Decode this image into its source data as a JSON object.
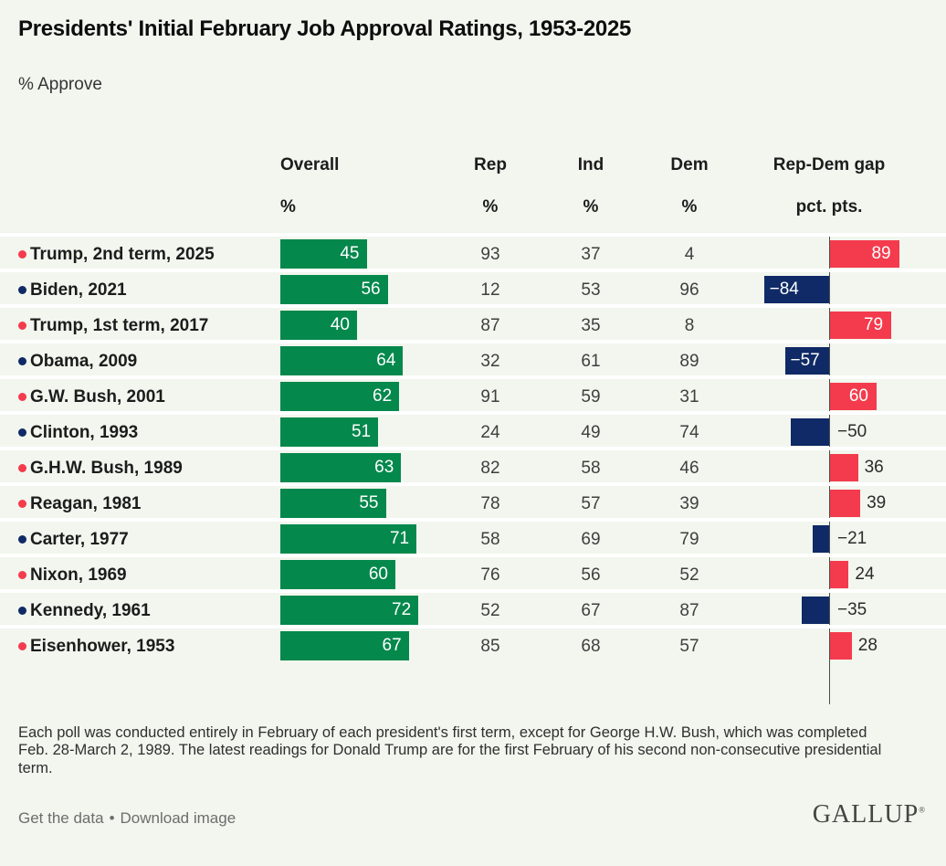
{
  "title": "Presidents' Initial February Job Approval Ratings, 1953-2025",
  "subtitle": "% Approve",
  "columns": [
    {
      "label": "Overall",
      "unit": "%"
    },
    {
      "label": "Rep",
      "unit": "%"
    },
    {
      "label": "Ind",
      "unit": "%"
    },
    {
      "label": "Dem",
      "unit": "%"
    },
    {
      "label": "Rep-Dem gap",
      "unit": "pct. pts."
    }
  ],
  "rows": [
    {
      "label": "Trump, 2nd term, 2025",
      "party": "R",
      "overall": 45,
      "rep": 93,
      "ind": 37,
      "dem": 4,
      "gap": 89,
      "gap_display": "89",
      "gap_label_inside": true
    },
    {
      "label": "Biden, 2021",
      "party": "D",
      "overall": 56,
      "rep": 12,
      "ind": 53,
      "dem": 96,
      "gap": -84,
      "gap_display": "−84",
      "gap_label_inside": true
    },
    {
      "label": "Trump, 1st term, 2017",
      "party": "R",
      "overall": 40,
      "rep": 87,
      "ind": 35,
      "dem": 8,
      "gap": 79,
      "gap_display": "79",
      "gap_label_inside": true
    },
    {
      "label": "Obama, 2009",
      "party": "D",
      "overall": 64,
      "rep": 32,
      "ind": 61,
      "dem": 89,
      "gap": -57,
      "gap_display": "−57",
      "gap_label_inside": true
    },
    {
      "label": "G.W. Bush, 2001",
      "party": "R",
      "overall": 62,
      "rep": 91,
      "ind": 59,
      "dem": 31,
      "gap": 60,
      "gap_display": "60",
      "gap_label_inside": true
    },
    {
      "label": "Clinton, 1993",
      "party": "D",
      "overall": 51,
      "rep": 24,
      "ind": 49,
      "dem": 74,
      "gap": -50,
      "gap_display": "−50",
      "gap_label_inside": false
    },
    {
      "label": "G.H.W. Bush, 1989",
      "party": "R",
      "overall": 63,
      "rep": 82,
      "ind": 58,
      "dem": 46,
      "gap": 36,
      "gap_display": "36",
      "gap_label_inside": false
    },
    {
      "label": "Reagan, 1981",
      "party": "R",
      "overall": 55,
      "rep": 78,
      "ind": 57,
      "dem": 39,
      "gap": 39,
      "gap_display": "39",
      "gap_label_inside": false
    },
    {
      "label": "Carter, 1977",
      "party": "D",
      "overall": 71,
      "rep": 58,
      "ind": 69,
      "dem": 79,
      "gap": -21,
      "gap_display": "−21",
      "gap_label_inside": false
    },
    {
      "label": "Nixon, 1969",
      "party": "R",
      "overall": 60,
      "rep": 76,
      "ind": 56,
      "dem": 52,
      "gap": 24,
      "gap_display": "24",
      "gap_label_inside": false
    },
    {
      "label": "Kennedy, 1961",
      "party": "D",
      "overall": 72,
      "rep": 52,
      "ind": 67,
      "dem": 87,
      "gap": -35,
      "gap_display": "−35",
      "gap_label_inside": false
    },
    {
      "label": "Eisenhower, 1953",
      "party": "R",
      "overall": 67,
      "rep": 85,
      "ind": 68,
      "dem": 57,
      "gap": 28,
      "gap_display": "28",
      "gap_label_inside": false
    }
  ],
  "footnote": "Each poll was conducted entirely in February of each president's first term, except for George H.W. Bush, which was completed Feb. 28-March 2, 1989. The latest readings for Donald Trump are for the first February of his second non-consecutive presidential term.",
  "footer": {
    "link1": "Get the data",
    "separator": "•",
    "link2": "Download image",
    "brand": "GALLUP",
    "brand_mark": "®"
  },
  "colors": {
    "green": "#04884c",
    "red": "#f43b4d",
    "navy": "#0f2a66",
    "background": "#f2f6ee",
    "separator": "#ffffff",
    "zero_line": "#4d4d4d"
  },
  "chart_data": {
    "type": "bar",
    "title": "Presidents' Initial February Job Approval Ratings, 1953-2025",
    "subtitle": "% Approve",
    "categories": [
      "Trump, 2nd term, 2025",
      "Biden, 2021",
      "Trump, 1st term, 2017",
      "Obama, 2009",
      "G.W. Bush, 2001",
      "Clinton, 1993",
      "G.H.W. Bush, 1989",
      "Reagan, 1981",
      "Carter, 1977",
      "Nixon, 1969",
      "Kennedy, 1961",
      "Eisenhower, 1953"
    ],
    "series": [
      {
        "name": "Overall %",
        "values": [
          45,
          56,
          40,
          64,
          62,
          51,
          63,
          55,
          71,
          60,
          72,
          67
        ]
      },
      {
        "name": "Rep %",
        "values": [
          93,
          12,
          87,
          32,
          91,
          24,
          82,
          78,
          58,
          76,
          52,
          85
        ]
      },
      {
        "name": "Ind %",
        "values": [
          37,
          53,
          35,
          61,
          59,
          49,
          58,
          57,
          69,
          56,
          67,
          68
        ]
      },
      {
        "name": "Dem %",
        "values": [
          4,
          96,
          8,
          89,
          31,
          74,
          46,
          39,
          79,
          52,
          87,
          57
        ]
      },
      {
        "name": "Rep-Dem gap pct. pts.",
        "values": [
          89,
          -84,
          79,
          -57,
          60,
          -50,
          36,
          39,
          -21,
          24,
          -35,
          28
        ]
      }
    ],
    "category_party": [
      "R",
      "D",
      "R",
      "D",
      "R",
      "D",
      "R",
      "R",
      "D",
      "R",
      "D",
      "R"
    ],
    "layout": {
      "orientation": "horizontal",
      "overall_bar_color": "#04884c",
      "positive_gap_color": "#f43b4d",
      "negative_gap_color": "#0f2a66",
      "zero_line": true,
      "grid": false,
      "legend": "none"
    }
  }
}
